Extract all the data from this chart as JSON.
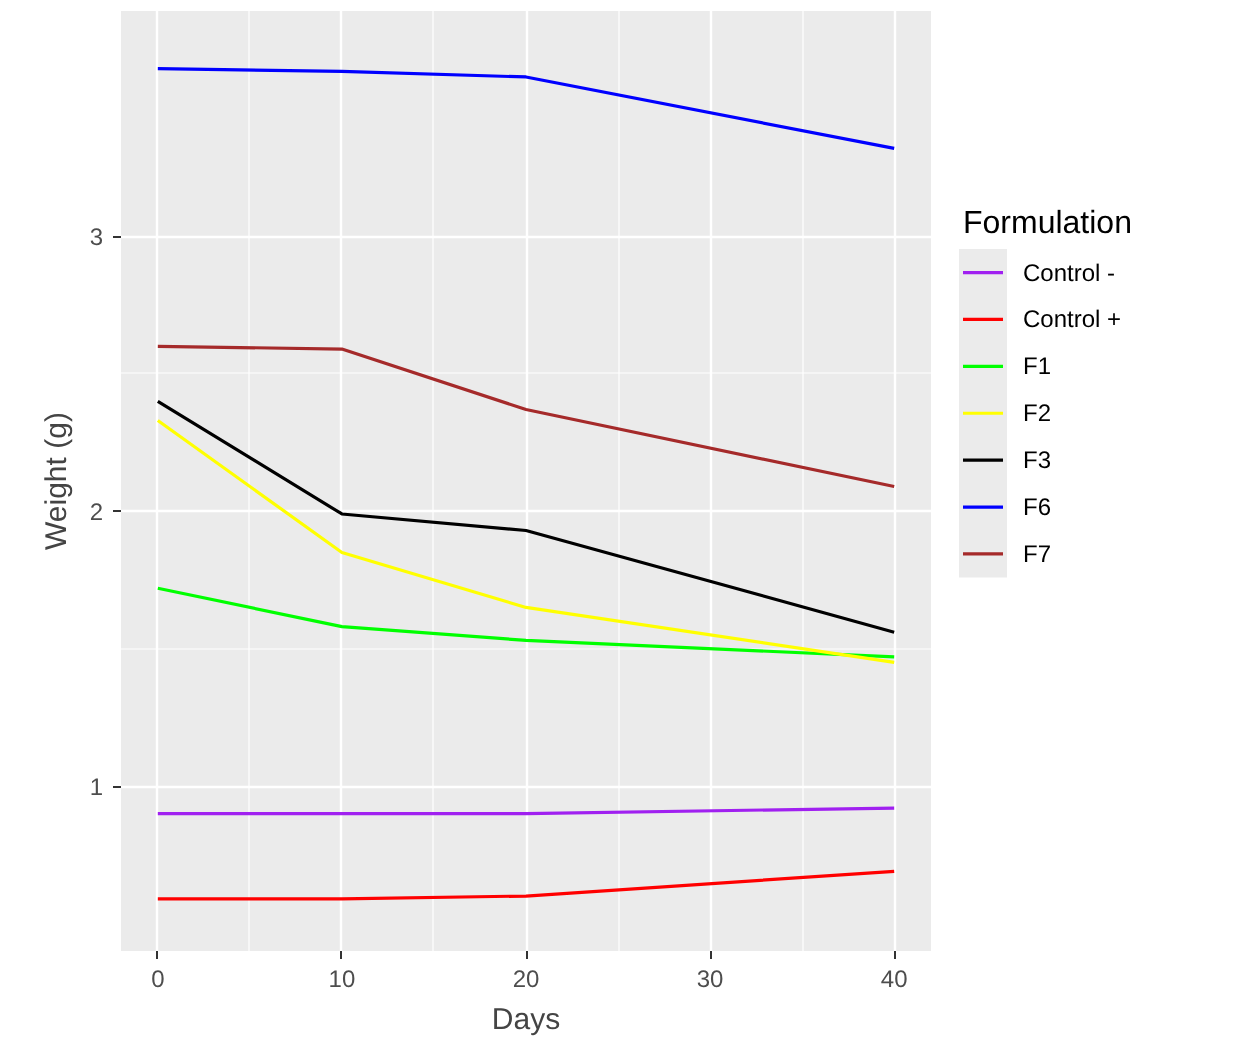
{
  "chart_data": {
    "type": "line",
    "xlabel": "Days",
    "ylabel": "Weight (g)",
    "legend_title": "Formulation",
    "legend": "right",
    "grid": true,
    "x": [
      0,
      10,
      20,
      40
    ],
    "xlim": [
      -2,
      42
    ],
    "ylim": [
      0.4,
      3.82
    ],
    "xticks": [
      0,
      10,
      20,
      30,
      40
    ],
    "yticks": [
      1,
      2,
      3
    ],
    "series": [
      {
        "name": "Control -",
        "color": "#a020f0",
        "values": [
          0.9,
          0.9,
          0.9,
          0.92
        ]
      },
      {
        "name": "Control +",
        "color": "#ff0000",
        "values": [
          0.59,
          0.59,
          0.6,
          0.69
        ]
      },
      {
        "name": "F1",
        "color": "#00ff00",
        "values": [
          1.72,
          1.58,
          1.53,
          1.47
        ]
      },
      {
        "name": "F2",
        "color": "#ffff00",
        "values": [
          2.33,
          1.85,
          1.65,
          1.45
        ]
      },
      {
        "name": "F3",
        "color": "#000000",
        "values": [
          2.4,
          1.99,
          1.93,
          1.56
        ]
      },
      {
        "name": "F6",
        "color": "#0000ff",
        "values": [
          3.61,
          3.6,
          3.58,
          3.32
        ]
      },
      {
        "name": "F7",
        "color": "#a52a2a",
        "values": [
          2.6,
          2.59,
          2.37,
          2.09
        ]
      }
    ]
  }
}
